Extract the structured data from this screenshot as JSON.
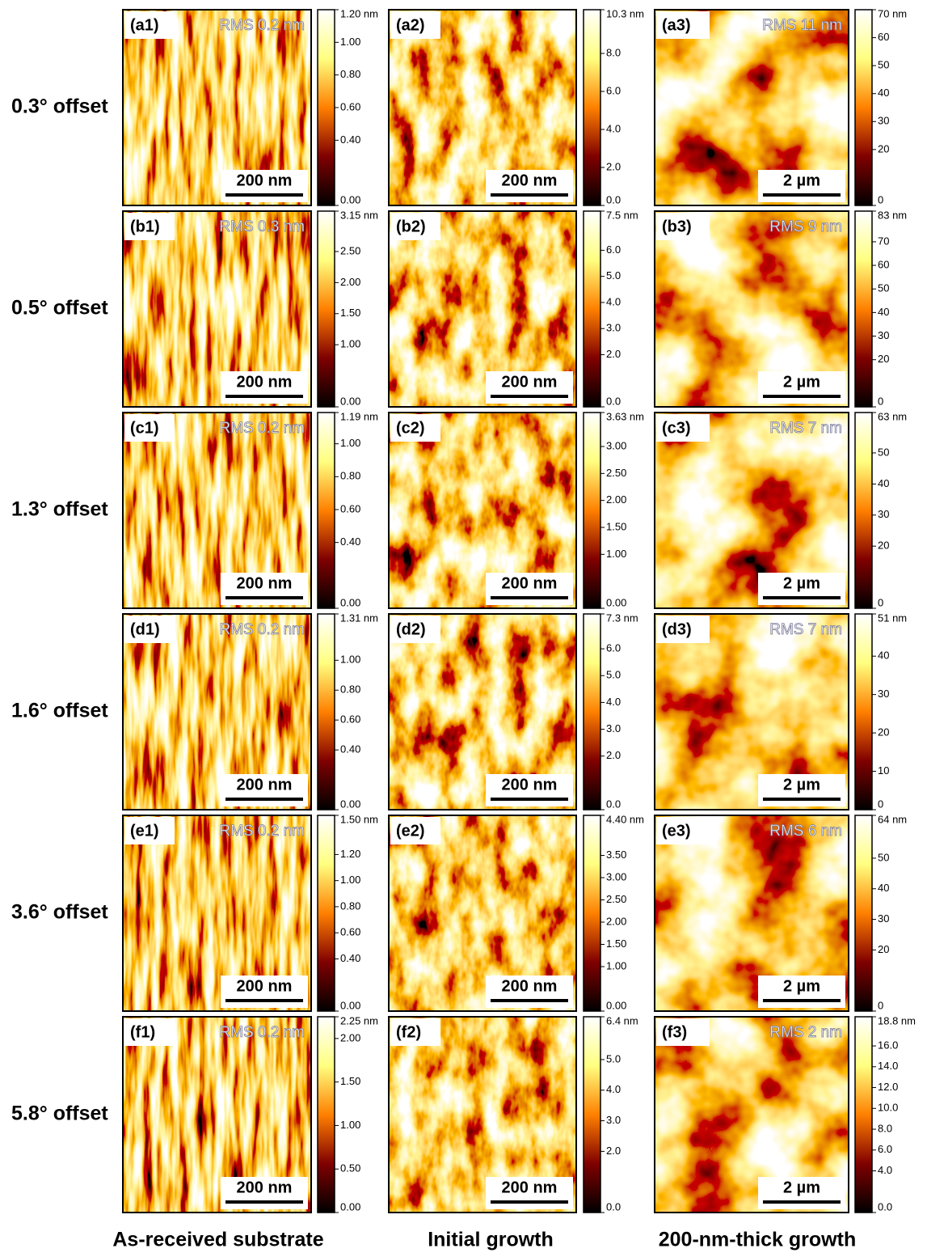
{
  "rows": [
    {
      "label": "0.3° offset",
      "panels": [
        {
          "label": "(a1)",
          "rms": "RMS 0.2 nm",
          "scale": "200 nm",
          "colorbar": [
            {
              "value": 1.2,
              "label": "1.20 nm"
            },
            {
              "value": 1.0,
              "label": "1.00"
            },
            {
              "value": 0.8,
              "label": "0.80"
            },
            {
              "value": 0.6,
              "label": "0.60"
            },
            {
              "value": 0.4,
              "label": "0.40"
            },
            {
              "value": 0,
              "label": "0.00"
            }
          ]
        },
        {
          "label": "(a2)",
          "scale": "200 nm",
          "colorbar": [
            {
              "value": 10.3,
              "label": "10.3 nm"
            },
            {
              "value": 8,
              "label": "8.0"
            },
            {
              "value": 6,
              "label": "6.0"
            },
            {
              "value": 4,
              "label": "4.0"
            },
            {
              "value": 2,
              "label": "2.0"
            },
            {
              "value": 0,
              "label": "0.0"
            }
          ]
        },
        {
          "label": "(a3)",
          "rms": "RMS 11 nm",
          "scale": "2 µm",
          "colorbar": [
            {
              "value": 70,
              "label": "70 nm"
            },
            {
              "value": 60,
              "label": "60"
            },
            {
              "value": 50,
              "label": "50"
            },
            {
              "value": 40,
              "label": "40"
            },
            {
              "value": 30,
              "label": "30"
            },
            {
              "value": 20,
              "label": "20"
            },
            {
              "value": 0,
              "label": "0"
            }
          ]
        }
      ]
    },
    {
      "label": "0.5° offset",
      "panels": [
        {
          "label": "(b1)",
          "rms": "RMS 0.3 nm",
          "scale": "200 nm",
          "colorbar": [
            {
              "value": 3.15,
              "label": "3.15 nm"
            },
            {
              "value": 2.5,
              "label": "2.50"
            },
            {
              "value": 2,
              "label": "2.00"
            },
            {
              "value": 1.5,
              "label": "1.50"
            },
            {
              "value": 1,
              "label": "1.00"
            },
            {
              "value": 0,
              "label": "0.00"
            }
          ]
        },
        {
          "label": "(b2)",
          "scale": "200 nm",
          "colorbar": [
            {
              "value": 7.5,
              "label": "7.5 nm"
            },
            {
              "value": 6,
              "label": "6.0"
            },
            {
              "value": 5,
              "label": "5.0"
            },
            {
              "value": 4,
              "label": "4.0"
            },
            {
              "value": 3,
              "label": "3.0"
            },
            {
              "value": 2,
              "label": "2.0"
            },
            {
              "value": 0,
              "label": "0.0"
            }
          ]
        },
        {
          "label": "(b3)",
          "rms": "RMS 9 nm",
          "scale": "2 µm",
          "colorbar": [
            {
              "value": 83,
              "label": "83 nm"
            },
            {
              "value": 70,
              "label": "70"
            },
            {
              "value": 60,
              "label": "60"
            },
            {
              "value": 50,
              "label": "50"
            },
            {
              "value": 40,
              "label": "40"
            },
            {
              "value": 30,
              "label": "30"
            },
            {
              "value": 20,
              "label": "20"
            },
            {
              "value": 0,
              "label": "0"
            }
          ]
        }
      ]
    },
    {
      "label": "1.3° offset",
      "panels": [
        {
          "label": "(c1)",
          "rms": "RMS 0.2 nm",
          "scale": "200 nm",
          "colorbar": [
            {
              "value": 1.19,
              "label": "1.19 nm"
            },
            {
              "value": 1,
              "label": "1.00"
            },
            {
              "value": 0.8,
              "label": "0.80"
            },
            {
              "value": 0.6,
              "label": "0.60"
            },
            {
              "value": 0.4,
              "label": "0.40"
            },
            {
              "value": 0,
              "label": "0.00"
            }
          ]
        },
        {
          "label": "(c2)",
          "scale": "200 nm",
          "colorbar": [
            {
              "value": 3.63,
              "label": "3.63 nm"
            },
            {
              "value": 3,
              "label": "3.00"
            },
            {
              "value": 2.5,
              "label": "2.50"
            },
            {
              "value": 2,
              "label": "2.00"
            },
            {
              "value": 1.5,
              "label": "1.50"
            },
            {
              "value": 1,
              "label": "1.00"
            },
            {
              "value": 0,
              "label": "0.00"
            }
          ]
        },
        {
          "label": "(c3)",
          "rms": "RMS 7 nm",
          "scale": "2 µm",
          "colorbar": [
            {
              "value": 63,
              "label": "63 nm"
            },
            {
              "value": 50,
              "label": "50"
            },
            {
              "value": 40,
              "label": "40"
            },
            {
              "value": 30,
              "label": "30"
            },
            {
              "value": 20,
              "label": "20"
            },
            {
              "value": 0,
              "label": "0"
            }
          ]
        }
      ]
    },
    {
      "label": "1.6° offset",
      "panels": [
        {
          "label": "(d1)",
          "rms": "RMS 0.2 nm",
          "scale": "200 nm",
          "colorbar": [
            {
              "value": 1.31,
              "label": "1.31 nm"
            },
            {
              "value": 1,
              "label": "1.00"
            },
            {
              "value": 0.8,
              "label": "0.80"
            },
            {
              "value": 0.6,
              "label": "0.60"
            },
            {
              "value": 0.4,
              "label": "0.40"
            },
            {
              "value": 0,
              "label": "0.00"
            }
          ]
        },
        {
          "label": "(d2)",
          "scale": "200 nm",
          "colorbar": [
            {
              "value": 7.3,
              "label": "7.3 nm"
            },
            {
              "value": 6,
              "label": "6.0"
            },
            {
              "value": 5,
              "label": "5.0"
            },
            {
              "value": 4,
              "label": "4.0"
            },
            {
              "value": 3,
              "label": "3.0"
            },
            {
              "value": 2,
              "label": "2.0"
            },
            {
              "value": 0,
              "label": "0.0"
            }
          ]
        },
        {
          "label": "(d3)",
          "rms": "RMS 7 nm",
          "scale": "2 µm",
          "colorbar": [
            {
              "value": 51,
              "label": "51 nm"
            },
            {
              "value": 40,
              "label": "40"
            },
            {
              "value": 30,
              "label": "30"
            },
            {
              "value": 20,
              "label": "20"
            },
            {
              "value": 10,
              "label": "10"
            },
            {
              "value": 0,
              "label": "0"
            }
          ]
        }
      ]
    },
    {
      "label": "3.6° offset",
      "panels": [
        {
          "label": "(e1)",
          "rms": "RMS 0.2 nm",
          "scale": "200 nm",
          "colorbar": [
            {
              "value": 1.5,
              "label": "1.50 nm"
            },
            {
              "value": 1.2,
              "label": "1.20"
            },
            {
              "value": 1,
              "label": "1.00"
            },
            {
              "value": 0.8,
              "label": "0.80"
            },
            {
              "value": 0.6,
              "label": "0.60"
            },
            {
              "value": 0.4,
              "label": "0.40"
            },
            {
              "value": 0,
              "label": "0.00"
            }
          ]
        },
        {
          "label": "(e2)",
          "scale": "200 nm",
          "colorbar": [
            {
              "value": 4.4,
              "label": "4.40 nm"
            },
            {
              "value": 3.5,
              "label": "3.50"
            },
            {
              "value": 3,
              "label": "3.00"
            },
            {
              "value": 2.5,
              "label": "2.50"
            },
            {
              "value": 2,
              "label": "2.00"
            },
            {
              "value": 1.5,
              "label": "1.50"
            },
            {
              "value": 1,
              "label": "1.00"
            },
            {
              "value": 0,
              "label": "0.00"
            }
          ]
        },
        {
          "label": "(e3)",
          "rms": "RMS 6 nm",
          "scale": "2 µm",
          "colorbar": [
            {
              "value": 64,
              "label": "64 nm"
            },
            {
              "value": 50,
              "label": "50"
            },
            {
              "value": 40,
              "label": "40"
            },
            {
              "value": 30,
              "label": "30"
            },
            {
              "value": 20,
              "label": "20"
            },
            {
              "value": 0,
              "label": "0"
            }
          ]
        }
      ]
    },
    {
      "label": "5.8° offset",
      "panels": [
        {
          "label": "(f1)",
          "rms": "RMS 0.2 nm",
          "scale": "200 nm",
          "colorbar": [
            {
              "value": 2.25,
              "label": "2.25 nm"
            },
            {
              "value": 2,
              "label": "2.00"
            },
            {
              "value": 1.5,
              "label": "1.50"
            },
            {
              "value": 1,
              "label": "1.00"
            },
            {
              "value": 0.5,
              "label": "0.50"
            },
            {
              "value": 0,
              "label": "0.00"
            }
          ]
        },
        {
          "label": "(f2)",
          "scale": "200 nm",
          "colorbar": [
            {
              "value": 6.4,
              "label": "6.4 nm"
            },
            {
              "value": 5,
              "label": "5.0"
            },
            {
              "value": 4,
              "label": "4.0"
            },
            {
              "value": 3,
              "label": "3.0"
            },
            {
              "value": 2,
              "label": "2.0"
            },
            {
              "value": 0,
              "label": "0.0"
            }
          ]
        },
        {
          "label": "(f3)",
          "rms": "RMS 2 nm",
          "scale": "2 µm",
          "colorbar": [
            {
              "value": 18.8,
              "label": "18.8 nm"
            },
            {
              "value": 16,
              "label": "16.0"
            },
            {
              "value": 14,
              "label": "14.0"
            },
            {
              "value": 12,
              "label": "12.0"
            },
            {
              "value": 10,
              "label": "10.0"
            },
            {
              "value": 8,
              "label": "8.0"
            },
            {
              "value": 6,
              "label": "6.0"
            },
            {
              "value": 4,
              "label": "4.0"
            },
            {
              "value": 0,
              "label": "0.0"
            }
          ]
        }
      ]
    }
  ],
  "column_titles": [
    "As-received substrate",
    "Initial growth",
    "200-nm-thick growth"
  ]
}
